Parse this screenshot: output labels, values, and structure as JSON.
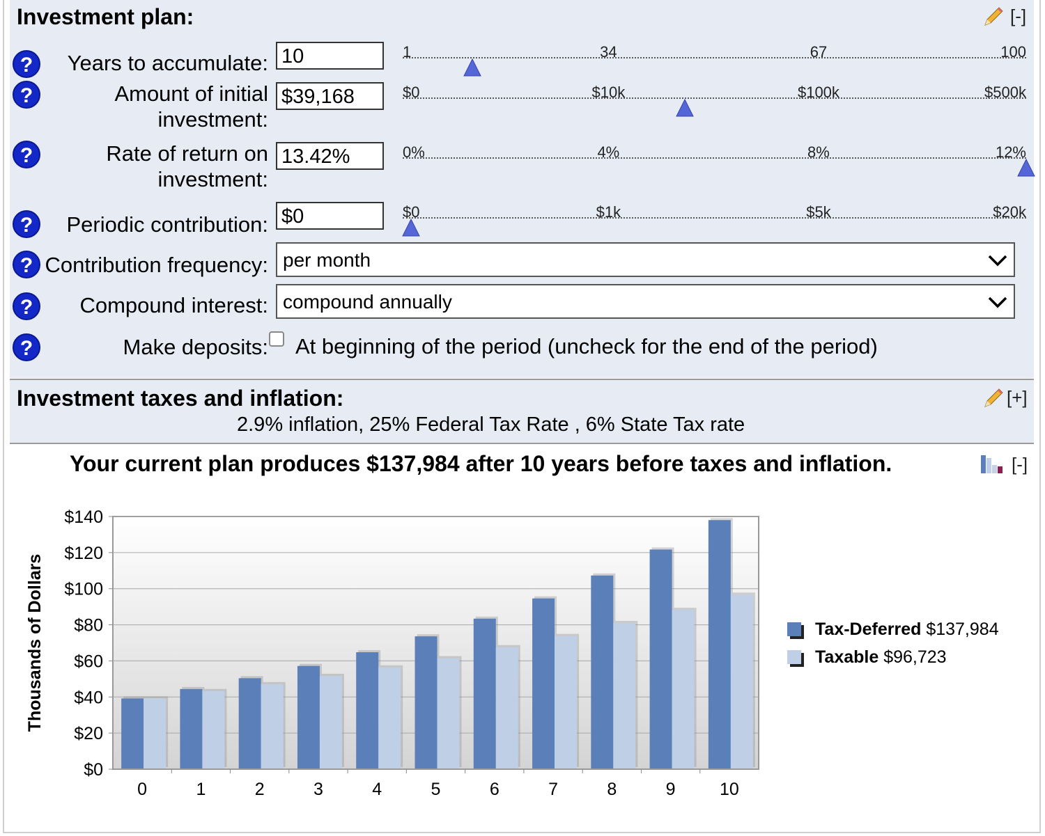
{
  "plan": {
    "title": "Investment plan:",
    "collapse": "[-]",
    "years": {
      "label": "Years to accumulate:",
      "value": "10",
      "ticks": [
        "1",
        "34",
        "67",
        "100"
      ],
      "slider_fraction": 0.1
    },
    "initial": {
      "label_line1": "Amount of initial",
      "label_line2": "investment:",
      "value": "$39,168",
      "ticks": [
        "$0",
        "$10k",
        "$100k",
        "$500k"
      ],
      "slider_fraction": 0.445
    },
    "rate": {
      "label_line1": "Rate of return on",
      "label_line2": "investment:",
      "value": "13.42%",
      "ticks": [
        "0%",
        "4%",
        "8%",
        "12%"
      ],
      "slider_fraction": 1.0
    },
    "periodic": {
      "label": "Periodic contribution:",
      "value": "$0",
      "ticks": [
        "$0",
        "$1k",
        "$5k",
        "$20k"
      ],
      "slider_fraction": 0.0
    },
    "frequency": {
      "label": "Contribution frequency:",
      "value": "per month"
    },
    "compound": {
      "label": "Compound interest:",
      "value": "compound annually"
    },
    "deposits": {
      "label": "Make deposits:",
      "checkbox_label": "At beginning of the period (uncheck for the end of the period)",
      "checked": false
    }
  },
  "tax": {
    "title": "Investment taxes and inflation:",
    "expand": "[+]",
    "summary": "2.9% inflation, 25% Federal Tax Rate , 6% State Tax rate"
  },
  "result": {
    "summary": "Your current plan produces $137,984 after 10 years before taxes and inflation.",
    "collapse": "[-]"
  },
  "colors": {
    "tax_deferred": "#5b7fb8",
    "taxable": "#bfcfe6",
    "help_blue": "#1428c8",
    "slider_thumb": "#5566d8",
    "panel_bg": "#e6ebf4"
  },
  "chart_data": {
    "type": "bar",
    "ylabel": "Thousands of Dollars",
    "xlabel": "",
    "categories": [
      "0",
      "1",
      "2",
      "3",
      "4",
      "5",
      "6",
      "7",
      "8",
      "9",
      "10"
    ],
    "ylim": [
      0,
      140
    ],
    "yticks": [
      "$0",
      "$20",
      "$40",
      "$60",
      "$80",
      "$100",
      "$120",
      "$140"
    ],
    "grid": true,
    "legend_position": "right",
    "series": [
      {
        "name": "Tax-Deferred",
        "legend_value": "$137,984",
        "values": [
          39.2,
          44.4,
          50.4,
          57.2,
          64.8,
          73.6,
          83.4,
          94.6,
          107.3,
          121.7,
          138.0
        ]
      },
      {
        "name": "Taxable",
        "legend_value": "$96,723",
        "values": [
          39.2,
          43.3,
          47.1,
          51.7,
          56.4,
          61.5,
          67.6,
          73.8,
          81.0,
          88.3,
          96.7
        ]
      }
    ]
  }
}
